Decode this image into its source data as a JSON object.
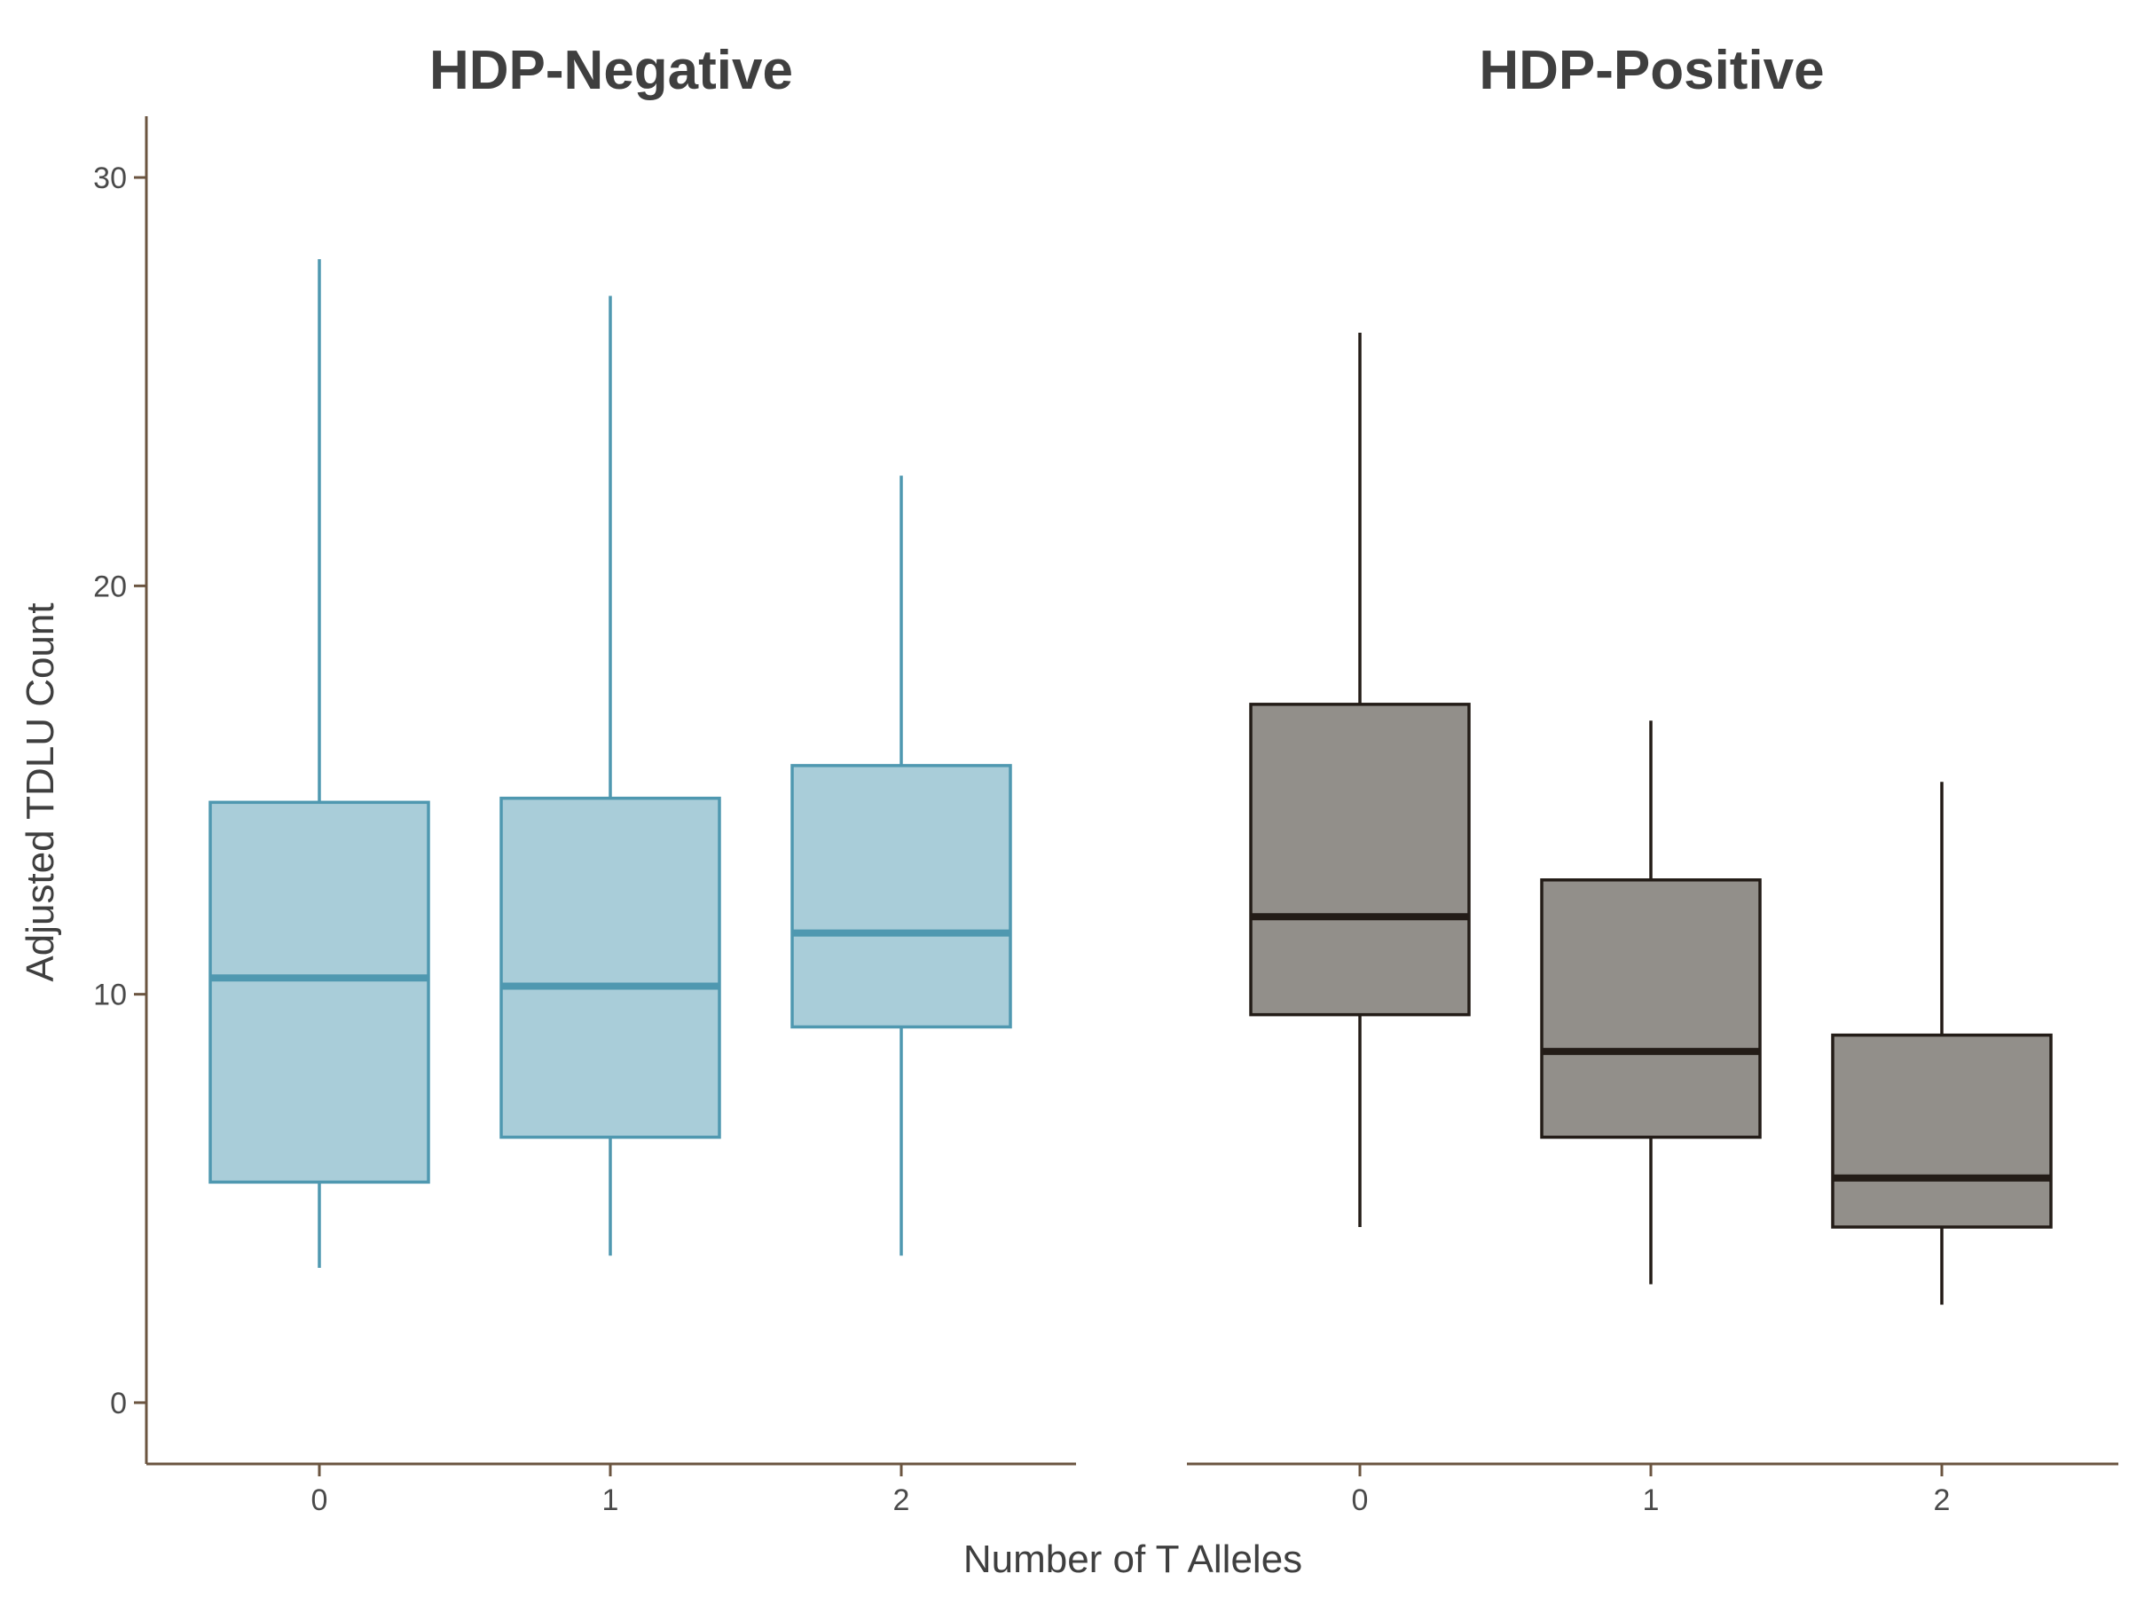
{
  "chart_data": {
    "type": "box",
    "ylabel": "Adjusted TDLU Count",
    "xlabel": "Number of T Alleles",
    "ylim": [
      -1.5,
      31.5
    ],
    "yticks": [
      0,
      10,
      20,
      30
    ],
    "categories": [
      "0",
      "1",
      "2"
    ],
    "grid": false,
    "panels": [
      {
        "title": "HDP-Negative",
        "fill": "#a9cdd9",
        "stroke": "#4f98b0",
        "boxes": [
          {
            "category": "0",
            "min": 3.3,
            "q1": 5.4,
            "median": 10.4,
            "q3": 14.7,
            "max": 28.0
          },
          {
            "category": "1",
            "min": 3.6,
            "q1": 6.5,
            "median": 10.2,
            "q3": 14.8,
            "max": 27.1
          },
          {
            "category": "2",
            "min": 3.6,
            "q1": 9.2,
            "median": 11.5,
            "q3": 15.6,
            "max": 22.7
          }
        ]
      },
      {
        "title": "HDP-Positive",
        "fill": "#928f8a",
        "stroke": "#231c17",
        "boxes": [
          {
            "category": "0",
            "min": 4.3,
            "q1": 9.5,
            "median": 11.9,
            "q3": 17.1,
            "max": 26.2
          },
          {
            "category": "1",
            "min": 2.9,
            "q1": 6.5,
            "median": 8.6,
            "q3": 12.8,
            "max": 16.7
          },
          {
            "category": "2",
            "min": 2.4,
            "q1": 4.3,
            "median": 5.5,
            "q3": 9.0,
            "max": 15.2
          }
        ]
      }
    ],
    "axis_color": "#6b5540"
  }
}
